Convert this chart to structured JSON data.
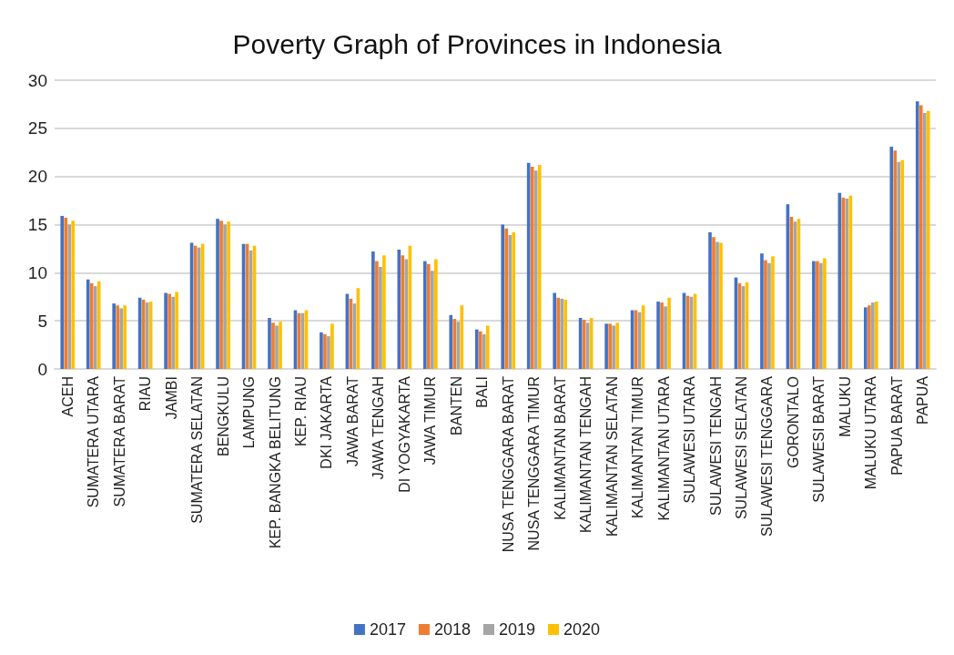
{
  "chart_data": {
    "type": "bar",
    "title": "Poverty Graph of Provinces in Indonesia",
    "categories": [
      "ACEH",
      "SUMATERA UTARA",
      "SUMATERA BARAT",
      "RIAU",
      "JAMBI",
      "SUMATERA SELATAN",
      "BENGKULU",
      "LAMPUNG",
      "KEP. BANGKA BELITUNG",
      "KEP. RIAU",
      "DKI JAKARTA",
      "JAWA BARAT",
      "JAWA TENGAH",
      "DI YOGYAKARTA",
      "JAWA TIMUR",
      "BANTEN",
      "BALI",
      "NUSA TENGGARA BARAT",
      "NUSA TENGGARA TIMUR",
      "KALIMANTAN BARAT",
      "KALIMANTAN TENGAH",
      "KALIMANTAN SELATAN",
      "KALIMANTAN TIMUR",
      "KALIMANTAN UTARA",
      "SULAWESI UTARA",
      "SULAWESI TENGAH",
      "SULAWESI SELATAN",
      "SULAWESI TENGGARA",
      "GORONTALO",
      "SULAWESI BARAT",
      "MALUKU",
      "MALUKU UTARA",
      "PAPUA BARAT",
      "PAPUA"
    ],
    "series": [
      {
        "name": "2017",
        "color": "#4472c4",
        "values": [
          15.9,
          9.3,
          6.8,
          7.4,
          7.9,
          13.1,
          15.6,
          13.0,
          5.3,
          6.1,
          3.8,
          7.8,
          12.2,
          12.4,
          11.2,
          5.6,
          4.1,
          15.0,
          21.4,
          7.9,
          5.3,
          4.7,
          6.1,
          7.0,
          7.9,
          14.2,
          9.5,
          12.0,
          17.1,
          11.2,
          18.3,
          6.4,
          23.1,
          27.8
        ]
      },
      {
        "name": "2018",
        "color": "#ed7d31",
        "values": [
          15.7,
          8.9,
          6.6,
          7.2,
          7.8,
          12.8,
          15.4,
          13.0,
          4.8,
          5.8,
          3.6,
          7.3,
          11.2,
          11.8,
          10.9,
          5.2,
          3.9,
          14.6,
          21.0,
          7.4,
          5.1,
          4.7,
          6.1,
          6.9,
          7.6,
          13.7,
          8.9,
          11.3,
          15.8,
          11.2,
          17.8,
          6.6,
          22.7,
          27.4
        ]
      },
      {
        "name": "2019",
        "color": "#a5a5a5",
        "values": [
          15.0,
          8.6,
          6.3,
          6.9,
          7.5,
          12.6,
          15.0,
          12.3,
          4.5,
          5.8,
          3.4,
          6.8,
          10.6,
          11.4,
          10.2,
          4.9,
          3.6,
          13.9,
          20.6,
          7.3,
          4.8,
          4.5,
          5.9,
          6.5,
          7.5,
          13.2,
          8.6,
          11.0,
          15.3,
          11.0,
          17.7,
          6.9,
          21.5,
          26.6
        ]
      },
      {
        "name": "2020",
        "color": "#ffc000",
        "values": [
          15.4,
          9.1,
          6.6,
          7.0,
          8.0,
          13.0,
          15.3,
          12.8,
          4.9,
          6.1,
          4.7,
          8.4,
          11.8,
          12.8,
          11.4,
          6.6,
          4.5,
          14.2,
          21.2,
          7.2,
          5.3,
          4.8,
          6.6,
          7.4,
          7.8,
          13.1,
          9.0,
          11.7,
          15.6,
          11.5,
          18.0,
          7.0,
          21.7,
          26.8
        ]
      }
    ],
    "ylim": [
      0,
      30
    ],
    "yticks": [
      0,
      5,
      10,
      15,
      20,
      25,
      30
    ],
    "grid": "y",
    "legend": "bottom"
  }
}
